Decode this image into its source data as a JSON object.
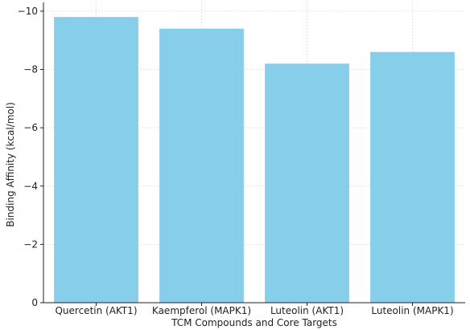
{
  "chart_data": {
    "type": "bar",
    "title": "",
    "xlabel": "TCM Compounds and Core Targets",
    "ylabel": "Binding Affinity (kcal/mol)",
    "categories": [
      "Quercetin (AKT1)",
      "Kaempferol (MAPK1)",
      "Luteolin (AKT1)",
      "Luteolin (MAPK1)"
    ],
    "values": [
      -9.8,
      -9.4,
      -8.2,
      -8.6
    ],
    "ylim": [
      0,
      -10.3
    ],
    "y_inverted": true,
    "yticks": [
      0,
      -2,
      -4,
      -6,
      -8,
      -10
    ],
    "ytick_labels": [
      "0",
      "−2",
      "−4",
      "−6",
      "−8",
      "−10"
    ],
    "grid": true,
    "bar_color": "#87ceeb",
    "grid_color": "#d9d9d9"
  }
}
